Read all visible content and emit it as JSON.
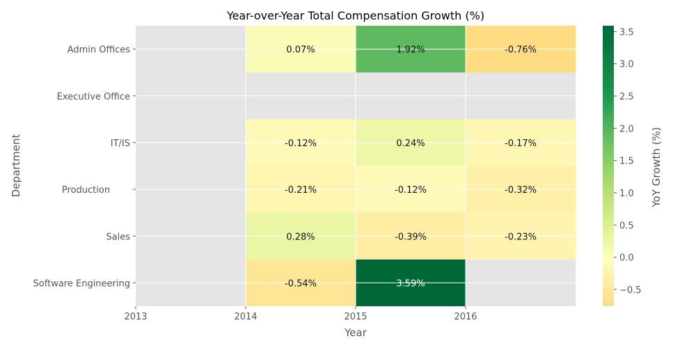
{
  "chart_data": {
    "type": "heatmap",
    "title": "Year-over-Year Total Compensation Growth (%)",
    "xlabel": "Year",
    "ylabel": "Department",
    "x_tick_labels": [
      "2013",
      "2014",
      "2015",
      "2016"
    ],
    "rows": [
      "Admin Offices",
      "Executive Office",
      "IT/IS",
      "Production       ",
      "Sales",
      "Software Engineering"
    ],
    "columns": [
      "2014",
      "2015",
      "2016"
    ],
    "values": [
      [
        0.07,
        1.92,
        -0.76
      ],
      [
        null,
        null,
        null
      ],
      [
        -0.12,
        0.24,
        -0.17
      ],
      [
        -0.21,
        -0.12,
        -0.32
      ],
      [
        0.28,
        -0.39,
        -0.23
      ],
      [
        -0.54,
        3.59,
        null
      ]
    ],
    "labels": [
      [
        "0.07%",
        "1.92%",
        "-0.76%"
      ],
      [
        "",
        "",
        ""
      ],
      [
        "-0.12%",
        "0.24%",
        "-0.17%"
      ],
      [
        "-0.21%",
        "-0.12%",
        "-0.32%"
      ],
      [
        "0.28%",
        "-0.39%",
        "-0.23%"
      ],
      [
        "-0.54%",
        "3.59%",
        ""
      ]
    ],
    "colorbar": {
      "label": "YoY Growth (%)",
      "range": [
        -0.76,
        3.59
      ],
      "ticks": [
        -0.5,
        0.0,
        0.5,
        1.0,
        1.5,
        2.0,
        2.5,
        3.0,
        3.5
      ],
      "tick_labels": [
        "−0.5",
        "0.0",
        "0.5",
        "1.0",
        "1.5",
        "2.0",
        "2.5",
        "3.0",
        "3.5"
      ],
      "colormap": "RdYlGn-like (yellow to dark green)"
    },
    "missing_color": "#e5e5e5",
    "grid": true
  }
}
